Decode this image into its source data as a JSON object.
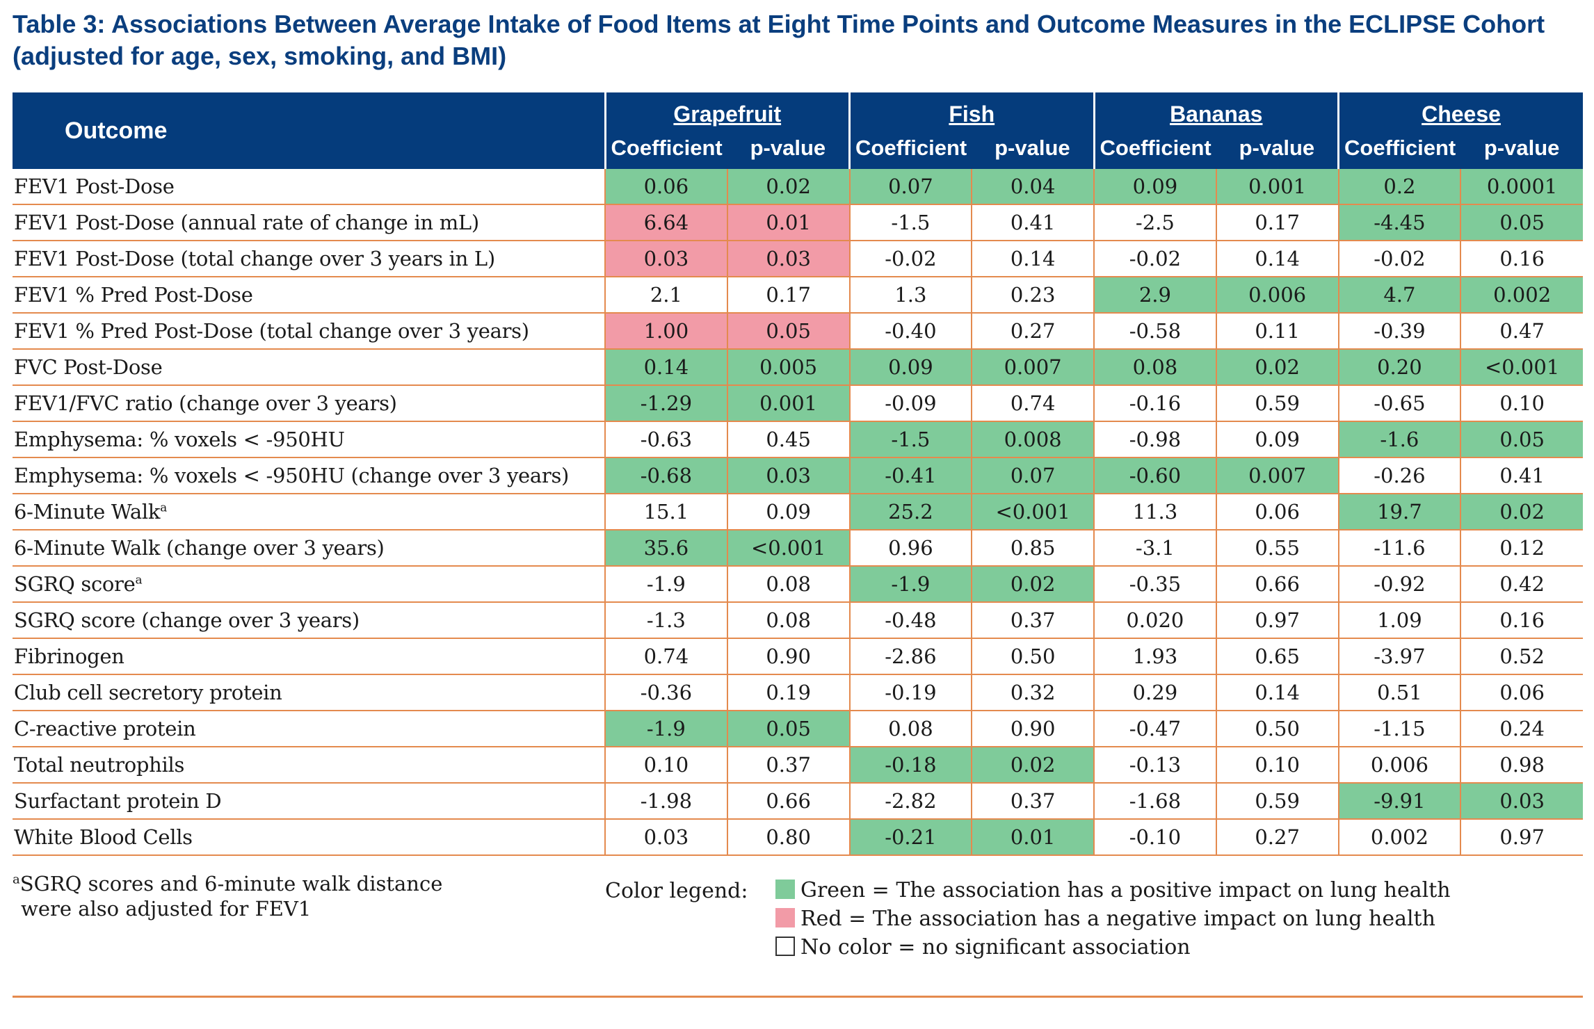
{
  "title": "Table 3:  Associations Between Average Intake of Food Items at Eight Time Points and Outcome Measures in the ECLIPSE Cohort (adjusted for age, sex, smoking, and BMI)",
  "table": {
    "outcome_header": "Outcome",
    "foods": [
      "Grapefruit",
      "Fish",
      "Bananas",
      "Cheese"
    ],
    "coef_label": "Coefficient",
    "p_label": "p-value",
    "colors": {
      "green": "#7fcb9a",
      "red": "#f29ba7",
      "header_bg": "#053c7c",
      "rule": "#e48a4e"
    },
    "rows": [
      {
        "outcome": "FEV1 Post-Dose",
        "sup": "",
        "cells": [
          [
            "0.06",
            "g"
          ],
          [
            "0.02",
            "g"
          ],
          [
            "0.07",
            "g"
          ],
          [
            "0.04",
            "g"
          ],
          [
            "0.09",
            "g"
          ],
          [
            "0.001",
            "g"
          ],
          [
            "0.2",
            "g"
          ],
          [
            "0.0001",
            "g"
          ]
        ]
      },
      {
        "outcome": "FEV1 Post-Dose (annual rate of change in mL)",
        "sup": "",
        "cells": [
          [
            "6.64",
            "r"
          ],
          [
            "0.01",
            "r"
          ],
          [
            "-1.5",
            ""
          ],
          [
            "0.41",
            ""
          ],
          [
            "-2.5",
            ""
          ],
          [
            "0.17",
            ""
          ],
          [
            "-4.45",
            "g"
          ],
          [
            "0.05",
            "g"
          ]
        ]
      },
      {
        "outcome": "FEV1 Post-Dose (total change over 3 years in L)",
        "sup": "",
        "cells": [
          [
            "0.03",
            "r"
          ],
          [
            "0.03",
            "r"
          ],
          [
            "-0.02",
            ""
          ],
          [
            "0.14",
            ""
          ],
          [
            "-0.02",
            ""
          ],
          [
            "0.14",
            ""
          ],
          [
            "-0.02",
            ""
          ],
          [
            "0.16",
            ""
          ]
        ]
      },
      {
        "outcome": "FEV1 % Pred Post-Dose",
        "sup": "",
        "cells": [
          [
            "2.1",
            ""
          ],
          [
            "0.17",
            ""
          ],
          [
            "1.3",
            ""
          ],
          [
            "0.23",
            ""
          ],
          [
            "2.9",
            "g"
          ],
          [
            "0.006",
            "g"
          ],
          [
            "4.7",
            "g"
          ],
          [
            "0.002",
            "g"
          ]
        ]
      },
      {
        "outcome": "FEV1 % Pred Post-Dose (total change over 3 years)",
        "sup": "",
        "cells": [
          [
            "1.00",
            "r"
          ],
          [
            "0.05",
            "r"
          ],
          [
            "-0.40",
            ""
          ],
          [
            "0.27",
            ""
          ],
          [
            "-0.58",
            ""
          ],
          [
            "0.11",
            ""
          ],
          [
            "-0.39",
            ""
          ],
          [
            "0.47",
            ""
          ]
        ]
      },
      {
        "outcome": "FVC Post-Dose",
        "sup": "",
        "cells": [
          [
            "0.14",
            "g"
          ],
          [
            "0.005",
            "g"
          ],
          [
            "0.09",
            "g"
          ],
          [
            "0.007",
            "g"
          ],
          [
            "0.08",
            "g"
          ],
          [
            "0.02",
            "g"
          ],
          [
            "0.20",
            "g"
          ],
          [
            "<0.001",
            "g"
          ]
        ]
      },
      {
        "outcome": "FEV1/FVC ratio (change over 3 years)",
        "sup": "",
        "cells": [
          [
            "-1.29",
            "g"
          ],
          [
            "0.001",
            "g"
          ],
          [
            "-0.09",
            ""
          ],
          [
            "0.74",
            ""
          ],
          [
            "-0.16",
            ""
          ],
          [
            "0.59",
            ""
          ],
          [
            "-0.65",
            ""
          ],
          [
            "0.10",
            ""
          ]
        ]
      },
      {
        "outcome": "Emphysema: % voxels < -950HU",
        "sup": "",
        "cells": [
          [
            "-0.63",
            ""
          ],
          [
            "0.45",
            ""
          ],
          [
            "-1.5",
            "g"
          ],
          [
            "0.008",
            "g"
          ],
          [
            "-0.98",
            ""
          ],
          [
            "0.09",
            ""
          ],
          [
            "-1.6",
            "g"
          ],
          [
            "0.05",
            "g"
          ]
        ]
      },
      {
        "outcome": "Emphysema: % voxels < -950HU (change over 3 years)",
        "sup": "",
        "cells": [
          [
            "-0.68",
            "g"
          ],
          [
            "0.03",
            "g"
          ],
          [
            "-0.41",
            "g"
          ],
          [
            "0.07",
            "g"
          ],
          [
            "-0.60",
            "g"
          ],
          [
            "0.007",
            "g"
          ],
          [
            "-0.26",
            ""
          ],
          [
            "0.41",
            ""
          ]
        ]
      },
      {
        "outcome": "6-Minute Walk",
        "sup": "a",
        "cells": [
          [
            "15.1",
            ""
          ],
          [
            "0.09",
            ""
          ],
          [
            "25.2",
            "g"
          ],
          [
            "<0.001",
            "g"
          ],
          [
            "11.3",
            ""
          ],
          [
            "0.06",
            ""
          ],
          [
            "19.7",
            "g"
          ],
          [
            "0.02",
            "g"
          ]
        ]
      },
      {
        "outcome": "6-Minute Walk (change over 3 years)",
        "sup": "",
        "cells": [
          [
            "35.6",
            "g"
          ],
          [
            "<0.001",
            "g"
          ],
          [
            "0.96",
            ""
          ],
          [
            "0.85",
            ""
          ],
          [
            "-3.1",
            ""
          ],
          [
            "0.55",
            ""
          ],
          [
            "-11.6",
            ""
          ],
          [
            "0.12",
            ""
          ]
        ]
      },
      {
        "outcome": "SGRQ score",
        "sup": "a",
        "cells": [
          [
            "-1.9",
            ""
          ],
          [
            "0.08",
            ""
          ],
          [
            "-1.9",
            "g"
          ],
          [
            "0.02",
            "g"
          ],
          [
            "-0.35",
            ""
          ],
          [
            "0.66",
            ""
          ],
          [
            "-0.92",
            ""
          ],
          [
            "0.42",
            ""
          ]
        ]
      },
      {
        "outcome": "SGRQ score (change over 3 years)",
        "sup": "",
        "cells": [
          [
            "-1.3",
            ""
          ],
          [
            "0.08",
            ""
          ],
          [
            "-0.48",
            ""
          ],
          [
            "0.37",
            ""
          ],
          [
            "0.020",
            ""
          ],
          [
            "0.97",
            ""
          ],
          [
            "1.09",
            ""
          ],
          [
            "0.16",
            ""
          ]
        ]
      },
      {
        "outcome": "Fibrinogen",
        "sup": "",
        "cells": [
          [
            "0.74",
            ""
          ],
          [
            "0.90",
            ""
          ],
          [
            "-2.86",
            ""
          ],
          [
            "0.50",
            ""
          ],
          [
            "1.93",
            ""
          ],
          [
            "0.65",
            ""
          ],
          [
            "-3.97",
            ""
          ],
          [
            "0.52",
            ""
          ]
        ]
      },
      {
        "outcome": "Club cell secretory protein",
        "sup": "",
        "cells": [
          [
            "-0.36",
            ""
          ],
          [
            "0.19",
            ""
          ],
          [
            "-0.19",
            ""
          ],
          [
            "0.32",
            ""
          ],
          [
            "0.29",
            ""
          ],
          [
            "0.14",
            ""
          ],
          [
            "0.51",
            ""
          ],
          [
            "0.06",
            ""
          ]
        ]
      },
      {
        "outcome": "C-reactive protein",
        "sup": "",
        "cells": [
          [
            "-1.9",
            "g"
          ],
          [
            "0.05",
            "g"
          ],
          [
            "0.08",
            ""
          ],
          [
            "0.90",
            ""
          ],
          [
            "-0.47",
            ""
          ],
          [
            "0.50",
            ""
          ],
          [
            "-1.15",
            ""
          ],
          [
            "0.24",
            ""
          ]
        ]
      },
      {
        "outcome": "Total neutrophils",
        "sup": "",
        "cells": [
          [
            "0.10",
            ""
          ],
          [
            "0.37",
            ""
          ],
          [
            "-0.18",
            "g"
          ],
          [
            "0.02",
            "g"
          ],
          [
            "-0.13",
            ""
          ],
          [
            "0.10",
            ""
          ],
          [
            "0.006",
            ""
          ],
          [
            "0.98",
            ""
          ]
        ]
      },
      {
        "outcome": "Surfactant protein D",
        "sup": "",
        "cells": [
          [
            "-1.98",
            ""
          ],
          [
            "0.66",
            ""
          ],
          [
            "-2.82",
            ""
          ],
          [
            "0.37",
            ""
          ],
          [
            "-1.68",
            ""
          ],
          [
            "0.59",
            ""
          ],
          [
            "-9.91",
            "g"
          ],
          [
            "0.03",
            "g"
          ]
        ]
      },
      {
        "outcome": "White Blood Cells",
        "sup": "",
        "cells": [
          [
            "0.03",
            ""
          ],
          [
            "0.80",
            ""
          ],
          [
            "-0.21",
            "g"
          ],
          [
            "0.01",
            "g"
          ],
          [
            "-0.10",
            ""
          ],
          [
            "0.27",
            ""
          ],
          [
            "0.002",
            ""
          ],
          [
            "0.97",
            ""
          ]
        ]
      }
    ]
  },
  "footnote": {
    "sup": "a",
    "line1": "SGRQ scores and 6-minute walk distance",
    "line2": "were also adjusted for FEV1"
  },
  "legend": {
    "title": "Color legend:",
    "green": "Green = The association has a positive impact on lung health",
    "red": "Red = The association has a negative impact on lung health",
    "none": "No color = no significant association"
  }
}
